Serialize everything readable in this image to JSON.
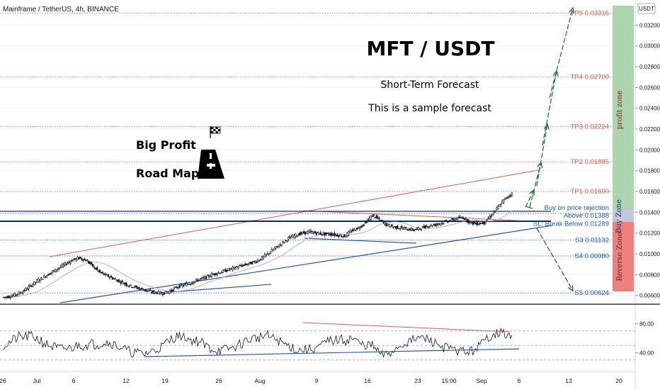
{
  "header": {
    "symbol": "Mainframe / TetherUS, 4h, BINANCE",
    "currency": "USDT"
  },
  "annotations": {
    "title": "MFT / USDT",
    "subtitle": "Short-Term Forecast",
    "note": "This is a sample forecast",
    "road_line1": "Big Profit",
    "road_line2": "Road Map",
    "profit_zone": "profit zone",
    "buy_zone": "Buy Zone",
    "reverse_zone": "Reverse Zone"
  },
  "colors": {
    "target": "#e05a4f",
    "support": "#2757b0",
    "profit_zone": "#aed4ae",
    "buy_zone": "#c3c9db",
    "reverse_zone": "#ee7f7f",
    "arrow_up": "#1e7a2e",
    "arrow_down": "#1e6b35",
    "candle": "#131722",
    "ma": "#b5b5b5",
    "dark_line": "#0b2f7a"
  },
  "chart_data": {
    "type": "line",
    "y_axis": {
      "ticks": [
        "0.032000",
        "0.030000",
        "0.028000",
        "0.026000",
        "0.024000",
        "0.022000",
        "0.020000",
        "0.018000",
        "0.016000",
        "0.014000",
        "0.012000",
        "0.010000",
        "0.008000",
        "0.006000"
      ]
    },
    "x_axis": {
      "ticks": [
        "26",
        "Jul",
        "6",
        "12",
        "19",
        "26",
        "Aug",
        "9",
        "16",
        "23",
        "15:00",
        "Sep",
        "6",
        "13",
        "20"
      ]
    },
    "levels": [
      {
        "label": "TP5 0.03316",
        "value": 0.03316,
        "kind": "target"
      },
      {
        "label": "TP4 0.02700",
        "value": 0.027,
        "kind": "target"
      },
      {
        "label": "TP3 0.02224",
        "value": 0.02224,
        "kind": "target"
      },
      {
        "label": "TP2 0.01885",
        "value": 0.01885,
        "kind": "target"
      },
      {
        "label": "TP1 0.01600",
        "value": 0.016,
        "kind": "target"
      },
      {
        "label": "Buy on price rejection",
        "value": 0.01395,
        "kind": "support"
      },
      {
        "label": "Above 0.01388",
        "value": 0.01388,
        "kind": "support"
      },
      {
        "label": "SL: Break Below 0.01289",
        "value": 0.01289,
        "kind": "support"
      },
      {
        "label": "S3 0.01132",
        "value": 0.01132,
        "kind": "support"
      },
      {
        "label": "S4 0.00980",
        "value": 0.0098,
        "kind": "support"
      },
      {
        "label": "S5 0.00624",
        "value": 0.00624,
        "kind": "support"
      }
    ],
    "price_path": [
      [
        0.0058,
        0.0059,
        0.0061,
        0.0064,
        0.0069,
        0.0074,
        0.0078,
        0.0082,
        0.0086,
        0.009,
        0.0094,
        0.0096,
        0.0094,
        0.0088,
        0.0082,
        0.0079,
        0.0076,
        0.0073,
        0.007,
        0.0068,
        0.0066,
        0.0064,
        0.0063,
        0.0062,
        0.0064,
        0.0068,
        0.007,
        0.0072,
        0.0075,
        0.0077,
        0.008,
        0.0082,
        0.0084,
        0.0086,
        0.0088,
        0.009,
        0.0092,
        0.0095,
        0.01,
        0.0105,
        0.011,
        0.0115,
        0.0118,
        0.012,
        0.0121,
        0.012,
        0.0119,
        0.0119,
        0.0118,
        0.0117,
        0.0122,
        0.0125,
        0.013,
        0.0137,
        0.0133,
        0.0128,
        0.0126,
        0.0125,
        0.0124,
        0.0123,
        0.0125,
        0.0127,
        0.0128,
        0.013,
        0.0132,
        0.0134,
        0.0135,
        0.013,
        0.0129,
        0.013,
        0.0137,
        0.0145,
        0.0153,
        0.0158
      ]
    ],
    "ylim": [
      0.0055,
      0.0338
    ],
    "oscillator": {
      "ticks": [
        "80.00",
        "40.00"
      ],
      "ylim": [
        20,
        100
      ],
      "bands": [
        70,
        50,
        30
      ]
    }
  }
}
